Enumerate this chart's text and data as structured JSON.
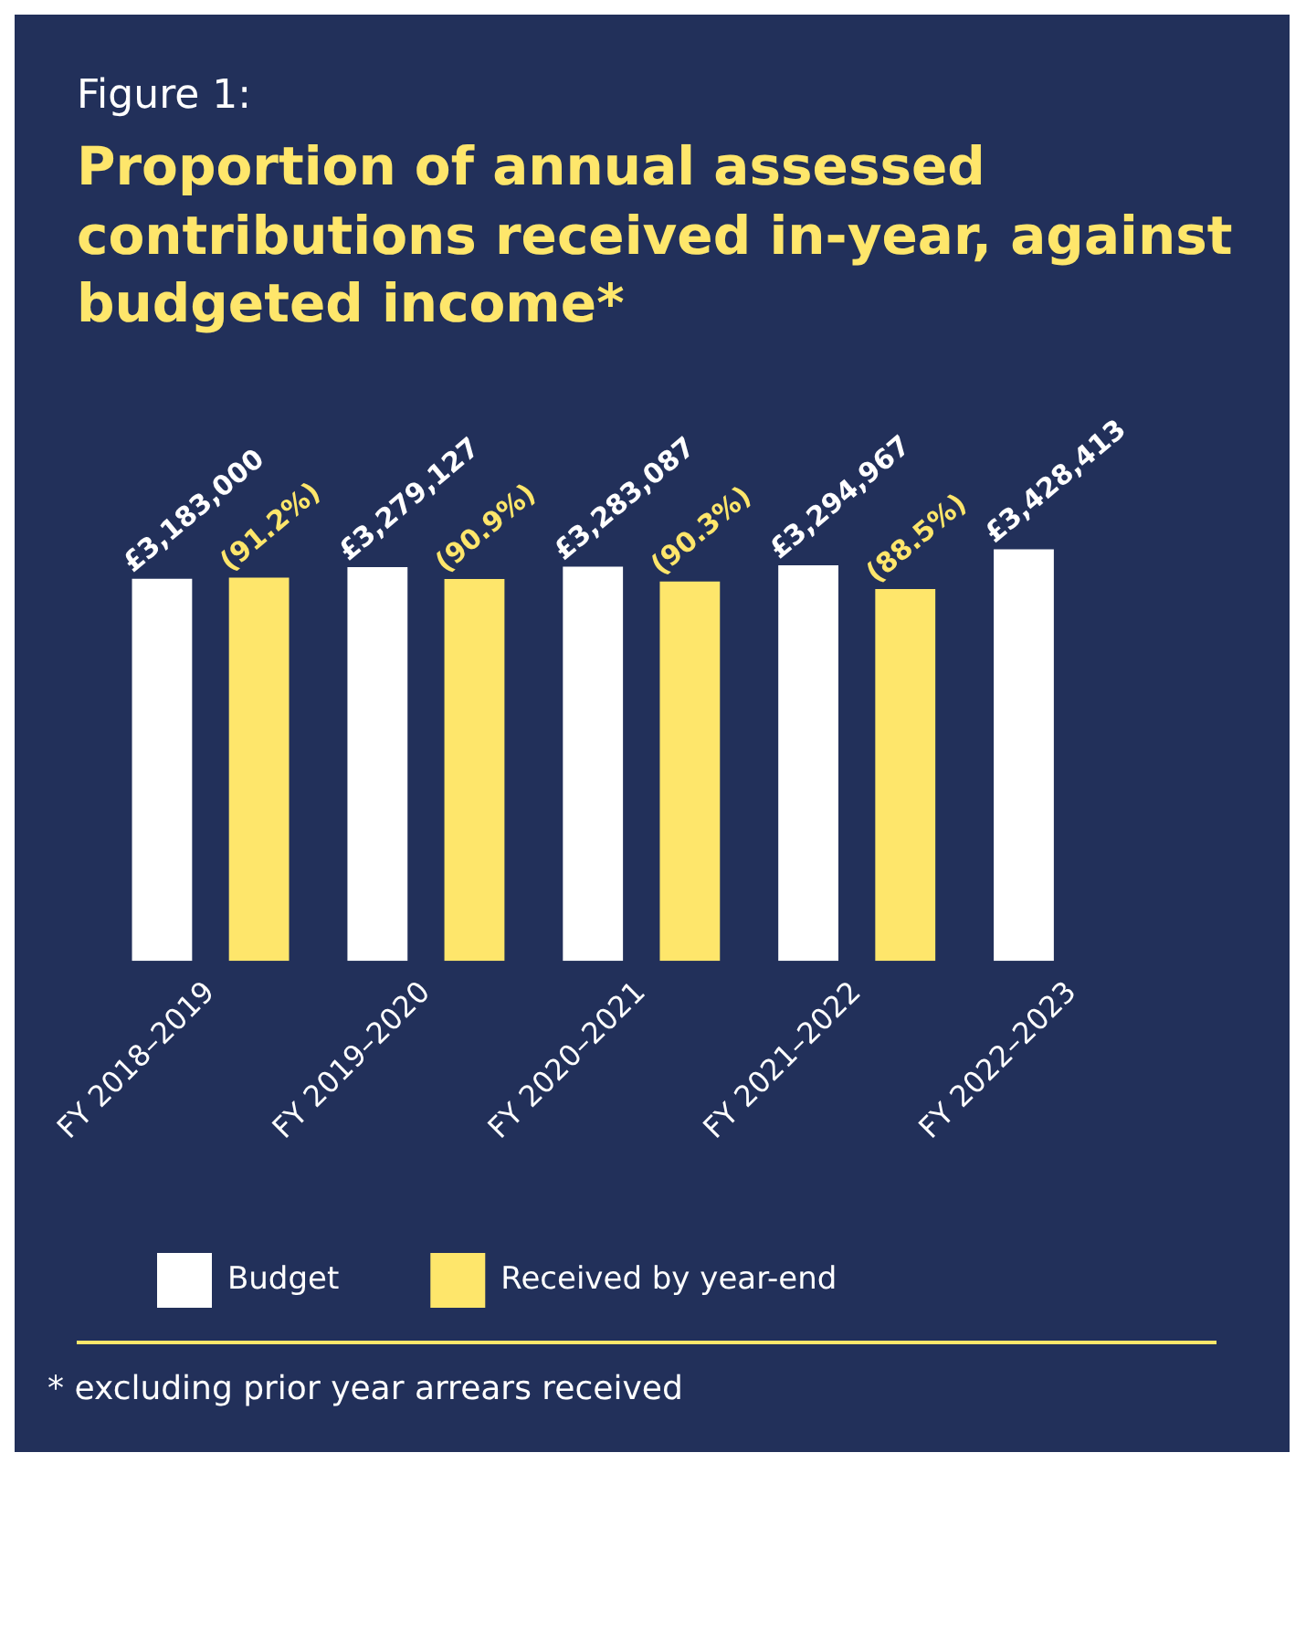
{
  "chart_data": {
    "type": "bar",
    "subtitle": "Figure 1:",
    "title": "Proportion of annual assessed contributions received in-year, against budgeted income*",
    "categories": [
      "FY 2018–2019",
      "FY 2019–2020",
      "FY 2020–2021",
      "FY 2021–2022",
      "FY 2022–2023"
    ],
    "series": [
      {
        "name": "Budget",
        "color": "#ffffff",
        "values": [
          3183000,
          3279127,
          3283087,
          3294967,
          3428413
        ],
        "value_labels": [
          "£3,183,000",
          "£3,279,127",
          "£3,283,087",
          "£3,294,967",
          "£3,428,413"
        ]
      },
      {
        "name": "Received by year-end",
        "color": "#fee66b",
        "axis": "y2",
        "values": [
          91.2,
          90.9,
          90.3,
          88.5,
          null
        ],
        "value_labels": [
          "(91.2%)",
          "(90.9%)",
          "(90.3%)",
          "(88.5%)",
          null
        ]
      }
    ],
    "legend": "bottom",
    "grid": false,
    "annotations": [
      "* excluding prior year arrears received"
    ]
  }
}
